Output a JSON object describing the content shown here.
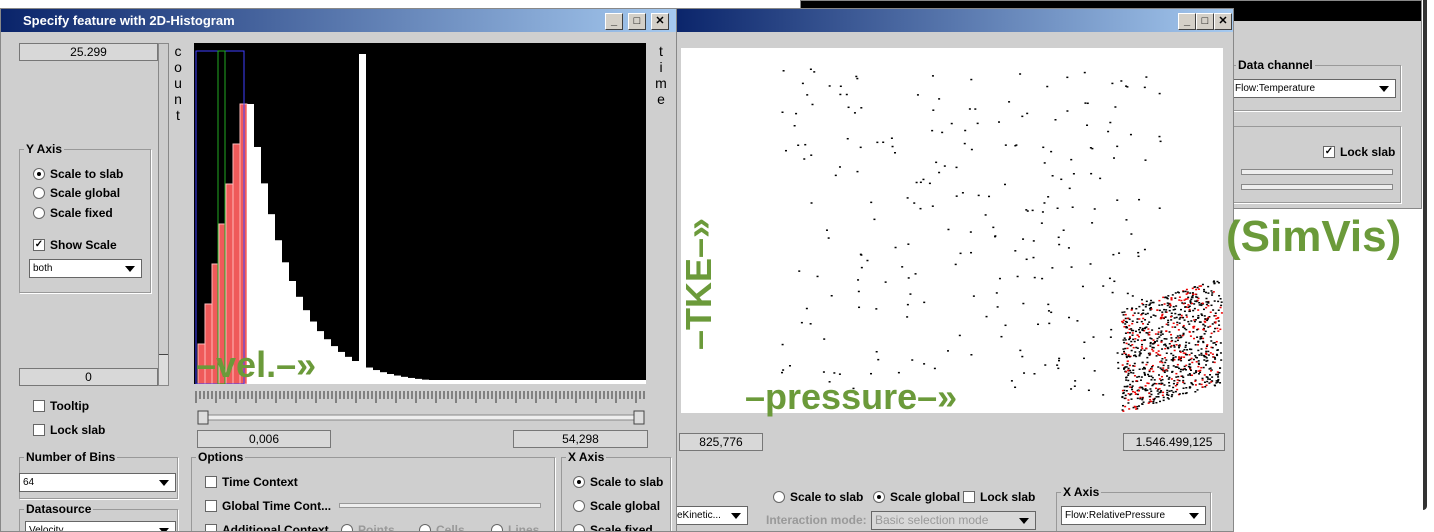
{
  "left_window": {
    "title": "Specify feature with 2D-Histogram",
    "top_value": "25.299",
    "y_label": "count",
    "y2_label": "time",
    "y_axis": {
      "title": "Y Axis",
      "options": [
        "Scale to slab",
        "Scale global",
        "Scale fixed"
      ],
      "show_scale": "Show Scale",
      "scale_mode": "both"
    },
    "bottom_value": "0",
    "tooltip": "Tooltip",
    "lock_slab": "Lock slab",
    "bins": {
      "title": "Number of Bins",
      "value": "64"
    },
    "datasource": {
      "title": "Datasource",
      "value": "Velocity"
    },
    "x_min": "0,006",
    "x_max": "54,298",
    "options": {
      "title": "Options",
      "items": [
        "Time Context",
        "Global Time Cont...",
        "Additional Context"
      ],
      "context_types": [
        "Points",
        "Cells",
        "Lines"
      ]
    },
    "x_axis": {
      "title": "X Axis",
      "options": [
        "Scale to slab",
        "Scale global",
        "Scale fixed"
      ]
    },
    "overlay": "–vel.–»"
  },
  "middle_window": {
    "overlay_y": "–TKE–»",
    "overlay_x": "–pressure–»",
    "x_min": "825,776",
    "x_max": "1.546.499,125",
    "channel": "eKinetic...",
    "scale_options": [
      "Scale to slab",
      "Scale global"
    ],
    "lock_slab": "Lock slab",
    "interaction_label": "Interaction mode:",
    "interaction_mode": "Basic selection mode",
    "x_axis": {
      "title": "X Axis",
      "value": "Flow:RelativePressure"
    }
  },
  "right_window": {
    "data_channel": {
      "title": "Data channel",
      "value": "Flow:Temperature"
    },
    "lock_slab": "Lock slab"
  },
  "brand": "(SimVis)"
}
